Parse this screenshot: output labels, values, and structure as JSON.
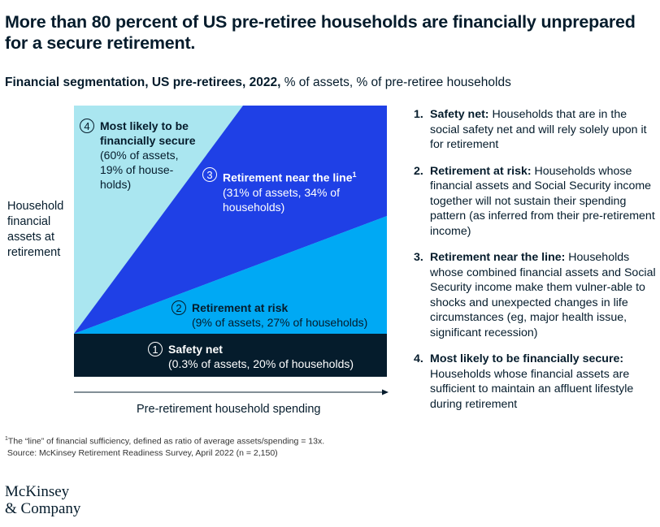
{
  "title": "More than 80 percent of US pre-retiree households are financially unprepared for a secure retirement.",
  "subtitle": {
    "bold": "Financial segmentation, US pre-retirees, 2022,",
    "rest": " % of assets, % of pre-retiree households"
  },
  "y_axis_label": "Household financial assets at retirement",
  "x_axis_label": "Pre-retirement household spending",
  "colors": {
    "segment1": "#051c2c",
    "segment2": "#00a9f4",
    "segment3": "#1f40e6",
    "segment4": "#aae6f0"
  },
  "segments": [
    {
      "num": "1",
      "name": "Safety net",
      "detail": "(0.3% of assets, 20% of households)"
    },
    {
      "num": "2",
      "name": "Retirement at risk",
      "detail": "(9% of assets, 27% of households)"
    },
    {
      "num": "3",
      "name": "Retirement near the line",
      "sup": "1",
      "detail": "(31% of assets, 34% of households)"
    },
    {
      "num": "4",
      "name": "Most likely to be financially secure",
      "detail": "(60% of assets, 19% of house-holds)"
    }
  ],
  "descriptions": [
    {
      "num": "1.",
      "name": "Safety net:",
      "text": " Households that are in the social safety net and will rely solely upon it for retirement"
    },
    {
      "num": "2.",
      "name": "Retirement at risk:",
      "text": " Households whose financial assets and Social Security income together will not sustain their spending pattern (as inferred from their pre-retirement income)"
    },
    {
      "num": "3.",
      "name": "Retirement near the line:",
      "text": " Households whose combined financial assets and Social Security income make them vulner-able to shocks and unexpected changes in life circumstances (eg, major health issue, significant recession)"
    },
    {
      "num": "4.",
      "name": "Most likely to be financially secure:",
      "text": " Households whose financial assets are sufficient to maintain an affluent lifestyle during retirement"
    }
  ],
  "footnote": {
    "sup": "1",
    "line1": "The “line” of financial sufficiency, defined as ratio of average assets/spending = 13x.",
    "line2": "Source: McKinsey Retirement Readiness Survey, April 2022 (n = 2,150)"
  },
  "logo": {
    "line1": "McKinsey",
    "line2": "& Company"
  }
}
